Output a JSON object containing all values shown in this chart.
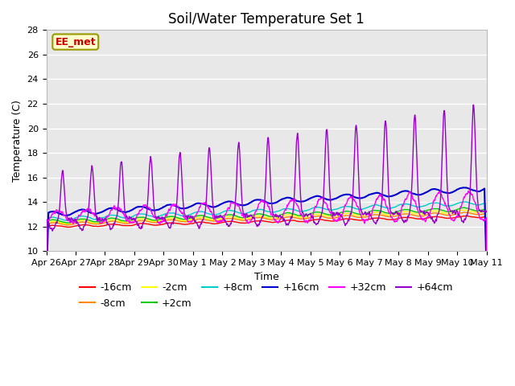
{
  "title": "Soil/Water Temperature Set 1",
  "xlabel": "Time",
  "ylabel": "Temperature (C)",
  "ylim": [
    10,
    28
  ],
  "n_days": 15,
  "label_text": "EE_met",
  "series_order": [
    "-16cm",
    "-8cm",
    "-2cm",
    "+2cm",
    "+8cm",
    "+16cm",
    "+32cm",
    "+64cm"
  ],
  "series": {
    "-16cm": {
      "color": "#ff0000",
      "lw": 1.0
    },
    "-8cm": {
      "color": "#ff8800",
      "lw": 1.0
    },
    "-2cm": {
      "color": "#ffff00",
      "lw": 1.0
    },
    "+2cm": {
      "color": "#00cc00",
      "lw": 1.0
    },
    "+8cm": {
      "color": "#00cccc",
      "lw": 1.0
    },
    "+16cm": {
      "color": "#0000cc",
      "lw": 1.5
    },
    "+32cm": {
      "color": "#ff00ff",
      "lw": 1.0
    },
    "+64cm": {
      "color": "#9900cc",
      "lw": 1.0
    }
  },
  "tick_labels": [
    "Apr 26",
    "Apr 27",
    "Apr 28",
    "Apr 29",
    "Apr 30",
    "May 1",
    "May 2",
    "May 3",
    "May 4",
    "May 5",
    "May 6",
    "May 7",
    "May 8",
    "May 9",
    "May 10",
    "May 11"
  ],
  "background_color": "#ffffff",
  "plot_bg_color": "#e8e8e8",
  "grid_color": "#ffffff",
  "title_fontsize": 12,
  "axis_fontsize": 9,
  "tick_fontsize": 8,
  "legend_fontsize": 9,
  "label_fontsize": 9,
  "yticks": [
    10,
    12,
    14,
    16,
    18,
    20,
    22,
    24,
    26,
    28
  ]
}
